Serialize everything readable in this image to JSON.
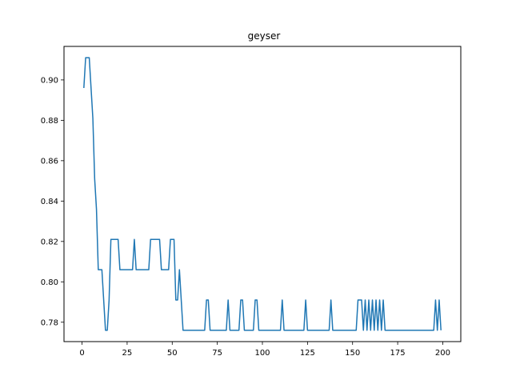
{
  "chart_data": {
    "type": "line",
    "title": "geyser",
    "xlabel": "",
    "ylabel": "",
    "xlim": [
      -10,
      210
    ],
    "ylim": [
      0.7704,
      0.9166
    ],
    "x_ticks": [
      0,
      25,
      50,
      75,
      100,
      125,
      150,
      175,
      200
    ],
    "y_ticks": [
      0.78,
      0.8,
      0.82,
      0.84,
      0.86,
      0.88,
      0.9
    ],
    "grid": false,
    "legend": "none",
    "series": [
      {
        "color": "#1f77b4",
        "points": [
          [
            1,
            0.896
          ],
          [
            2,
            0.911
          ],
          [
            4,
            0.911
          ],
          [
            6,
            0.881
          ],
          [
            7,
            0.851
          ],
          [
            8,
            0.836
          ],
          [
            9,
            0.806
          ],
          [
            11,
            0.806
          ],
          [
            12,
            0.791
          ],
          [
            13,
            0.776
          ],
          [
            14,
            0.776
          ],
          [
            15,
            0.791
          ],
          [
            16,
            0.821
          ],
          [
            20,
            0.821
          ],
          [
            21,
            0.806
          ],
          [
            28,
            0.806
          ],
          [
            29,
            0.821
          ],
          [
            30,
            0.806
          ],
          [
            37,
            0.806
          ],
          [
            38,
            0.821
          ],
          [
            43,
            0.821
          ],
          [
            44,
            0.806
          ],
          [
            48,
            0.806
          ],
          [
            49,
            0.821
          ],
          [
            51,
            0.821
          ],
          [
            52,
            0.791
          ],
          [
            53,
            0.791
          ],
          [
            54,
            0.806
          ],
          [
            56,
            0.776
          ],
          [
            68,
            0.776
          ],
          [
            69,
            0.791
          ],
          [
            70,
            0.791
          ],
          [
            71,
            0.776
          ],
          [
            80,
            0.776
          ],
          [
            81,
            0.791
          ],
          [
            82,
            0.776
          ],
          [
            87,
            0.776
          ],
          [
            88,
            0.791
          ],
          [
            89,
            0.791
          ],
          [
            90,
            0.776
          ],
          [
            95,
            0.776
          ],
          [
            96,
            0.791
          ],
          [
            97,
            0.791
          ],
          [
            98,
            0.776
          ],
          [
            110,
            0.776
          ],
          [
            111,
            0.791
          ],
          [
            112,
            0.776
          ],
          [
            123,
            0.776
          ],
          [
            124,
            0.791
          ],
          [
            125,
            0.776
          ],
          [
            137,
            0.776
          ],
          [
            138,
            0.791
          ],
          [
            139,
            0.776
          ],
          [
            152,
            0.776
          ],
          [
            153,
            0.791
          ],
          [
            155,
            0.791
          ],
          [
            156,
            0.776
          ],
          [
            157,
            0.791
          ],
          [
            158,
            0.776
          ],
          [
            159,
            0.791
          ],
          [
            160,
            0.776
          ],
          [
            161,
            0.791
          ],
          [
            162,
            0.776
          ],
          [
            163,
            0.791
          ],
          [
            164,
            0.776
          ],
          [
            165,
            0.791
          ],
          [
            166,
            0.776
          ],
          [
            167,
            0.791
          ],
          [
            168,
            0.776
          ],
          [
            195,
            0.776
          ],
          [
            196,
            0.791
          ],
          [
            197,
            0.776
          ],
          [
            198,
            0.791
          ],
          [
            199,
            0.776
          ]
        ]
      }
    ]
  }
}
